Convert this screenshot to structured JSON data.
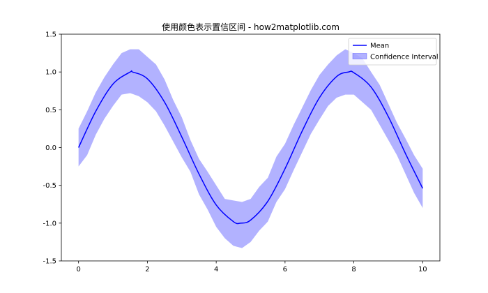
{
  "chart_data": {
    "type": "line",
    "title": "使用颜色表示置信区间 - how2matplotlib.com",
    "xlabel": "",
    "ylabel": "",
    "xlim": [
      -0.5,
      10.5
    ],
    "ylim": [
      -1.5,
      1.5
    ],
    "xticks": [
      0,
      2,
      4,
      6,
      8,
      10
    ],
    "yticks": [
      -1.5,
      -1.0,
      -0.5,
      0.0,
      0.5,
      1.0,
      1.5
    ],
    "xtick_labels": [
      "0",
      "2",
      "4",
      "6",
      "8",
      "10"
    ],
    "ytick_labels": [
      "-1.5",
      "-1.0",
      "-0.5",
      "0.0",
      "0.5",
      "1.0",
      "1.5"
    ],
    "grid": false,
    "legend_position": "top-right",
    "series": [
      {
        "name": "Mean",
        "kind": "line",
        "color": "#0000ff",
        "x": [
          0.0,
          0.5,
          1.0,
          1.5,
          1.57,
          2.0,
          2.5,
          3.0,
          3.5,
          4.0,
          4.5,
          4.71,
          5.0,
          5.5,
          6.0,
          6.5,
          7.0,
          7.5,
          7.85,
          8.0,
          8.5,
          9.0,
          9.5,
          10.0
        ],
        "y": [
          0.0,
          0.48,
          0.84,
          1.0,
          1.0,
          0.91,
          0.6,
          0.14,
          -0.35,
          -0.76,
          -0.98,
          -1.0,
          -0.96,
          -0.71,
          -0.28,
          0.22,
          0.66,
          0.94,
          1.0,
          0.99,
          0.8,
          0.41,
          -0.08,
          -0.54
        ]
      },
      {
        "name": "Confidence Interval",
        "kind": "band",
        "color": "#0000ff",
        "opacity": 0.3,
        "x": [
          0.0,
          0.25,
          0.5,
          0.75,
          1.0,
          1.25,
          1.5,
          1.75,
          2.0,
          2.25,
          2.5,
          2.75,
          3.0,
          3.25,
          3.5,
          3.75,
          4.0,
          4.25,
          4.5,
          4.75,
          5.0,
          5.25,
          5.5,
          5.75,
          6.0,
          6.25,
          6.5,
          6.75,
          7.0,
          7.25,
          7.5,
          7.75,
          8.0,
          8.25,
          8.5,
          8.75,
          9.0,
          9.25,
          9.5,
          9.75,
          10.0
        ],
        "lower": [
          -0.25,
          -0.1,
          0.17,
          0.38,
          0.55,
          0.7,
          0.72,
          0.68,
          0.6,
          0.48,
          0.29,
          0.08,
          -0.13,
          -0.32,
          -0.62,
          -0.82,
          -1.05,
          -1.2,
          -1.3,
          -1.33,
          -1.25,
          -1.1,
          -0.98,
          -0.72,
          -0.55,
          -0.3,
          -0.06,
          0.18,
          0.37,
          0.55,
          0.66,
          0.7,
          0.7,
          0.6,
          0.5,
          0.3,
          0.1,
          -0.1,
          -0.35,
          -0.6,
          -0.8
        ],
        "upper": [
          0.25,
          0.48,
          0.73,
          0.93,
          1.1,
          1.25,
          1.3,
          1.3,
          1.2,
          1.1,
          0.9,
          0.63,
          0.4,
          0.1,
          -0.15,
          -0.32,
          -0.5,
          -0.68,
          -0.7,
          -0.72,
          -0.68,
          -0.52,
          -0.4,
          -0.12,
          0.05,
          0.3,
          0.53,
          0.76,
          0.96,
          1.1,
          1.22,
          1.3,
          1.25,
          1.18,
          1.0,
          0.83,
          0.58,
          0.33,
          0.12,
          -0.1,
          -0.28
        ]
      }
    ]
  }
}
